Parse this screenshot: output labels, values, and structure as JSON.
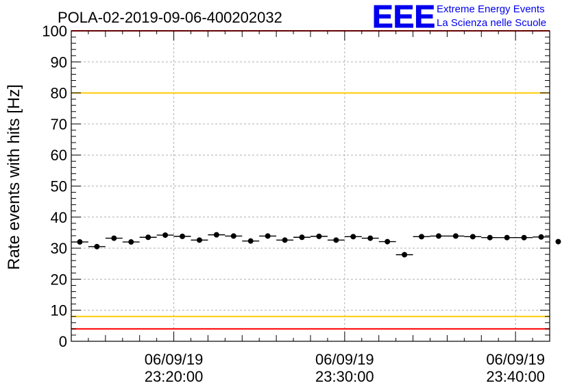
{
  "chart_data": {
    "type": "scatter",
    "title": "POLA-02-2019-09-06-400202032",
    "ylabel": "Rate events with hits [Hz]",
    "xlabel": "",
    "ylim": [
      0,
      100
    ],
    "y_ticks": [
      "0",
      "10",
      "20",
      "30",
      "40",
      "50",
      "60",
      "70",
      "80",
      "90",
      "100"
    ],
    "x_tick_labels": [
      {
        "date": "06/09/19",
        "time": "23:20:00"
      },
      {
        "date": "06/09/19",
        "time": "23:30:00"
      },
      {
        "date": "06/09/19",
        "time": "23:40:00"
      }
    ],
    "x_range": [
      "23:14:00",
      "23:42:00"
    ],
    "bin_width_min": 1,
    "grid": true,
    "series": [
      {
        "points": [
          {
            "x": "23:14:30",
            "y": 32.0
          },
          {
            "x": "23:15:30",
            "y": 30.5
          },
          {
            "x": "23:16:30",
            "y": 33.2
          },
          {
            "x": "23:17:30",
            "y": 32.0
          },
          {
            "x": "23:18:30",
            "y": 33.5
          },
          {
            "x": "23:19:30",
            "y": 34.2
          },
          {
            "x": "23:20:30",
            "y": 33.8
          },
          {
            "x": "23:21:30",
            "y": 32.6
          },
          {
            "x": "23:22:30",
            "y": 34.3
          },
          {
            "x": "23:23:30",
            "y": 33.9
          },
          {
            "x": "23:24:30",
            "y": 32.3
          },
          {
            "x": "23:25:30",
            "y": 33.9
          },
          {
            "x": "23:26:30",
            "y": 32.6
          },
          {
            "x": "23:27:30",
            "y": 33.5
          },
          {
            "x": "23:28:30",
            "y": 33.8
          },
          {
            "x": "23:29:30",
            "y": 32.6
          },
          {
            "x": "23:30:30",
            "y": 33.7
          },
          {
            "x": "23:31:30",
            "y": 33.2
          },
          {
            "x": "23:32:30",
            "y": 32.1
          },
          {
            "x": "23:33:30",
            "y": 27.9
          },
          {
            "x": "23:34:30",
            "y": 33.7
          },
          {
            "x": "23:35:30",
            "y": 33.9
          },
          {
            "x": "23:36:30",
            "y": 33.9
          },
          {
            "x": "23:37:30",
            "y": 33.7
          },
          {
            "x": "23:38:30",
            "y": 33.4
          },
          {
            "x": "23:39:30",
            "y": 33.4
          },
          {
            "x": "23:40:30",
            "y": 33.4
          },
          {
            "x": "23:41:30",
            "y": 33.6
          },
          {
            "x": "23:42:30",
            "y": 32.1
          }
        ]
      }
    ],
    "reference_lines": [
      {
        "y": 100,
        "color": "#ff0000"
      },
      {
        "y": 80,
        "color": "#ffcc00"
      },
      {
        "y": 8,
        "color": "#ffcc00"
      },
      {
        "y": 4,
        "color": "#ff0000"
      }
    ]
  },
  "logo": {
    "mark": "EEE",
    "line1": "Extreme Energy Events",
    "line2": "La Scienza nelle Scuole",
    "color": "#0000ee"
  },
  "colors": {
    "marker": "#000000",
    "grid": "#b0b0b0",
    "frame": "#000000"
  }
}
